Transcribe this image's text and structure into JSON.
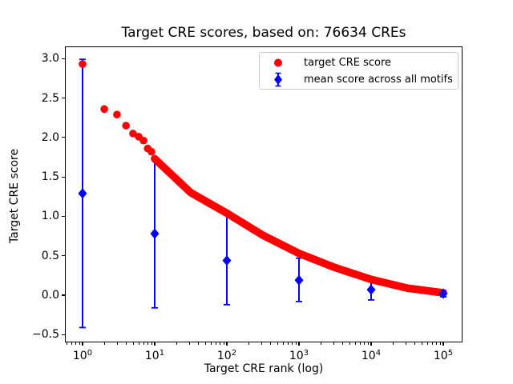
{
  "chart_data": {
    "type": "scatter",
    "title": "Target CRE scores, based on: 76634 CREs",
    "xlabel": "Target CRE rank (log)",
    "ylabel": "Target CRE score",
    "x_scale": "log",
    "xlim_log10": [
      -0.25,
      5.27
    ],
    "ylim": [
      -0.67,
      3.1
    ],
    "grid": false,
    "legend_position": "upper right",
    "colors": {
      "target": "#ff0000",
      "mean": "#0000ff",
      "axis": "#000000",
      "legend_border": "#cccccc"
    },
    "series": [
      {
        "name": "target CRE score",
        "type": "scatter",
        "marker": "circle",
        "color": "#ff0000",
        "points_rank_score": [
          [
            1,
            2.93
          ],
          [
            2,
            2.36
          ],
          [
            3,
            2.29
          ],
          [
            4,
            2.15
          ],
          [
            5,
            2.05
          ],
          [
            6,
            2.01
          ],
          [
            7,
            1.96
          ],
          [
            8,
            1.86
          ],
          [
            9,
            1.82
          ],
          [
            10,
            1.73
          ]
        ],
        "curve_anchors_log10rank_score": [
          [
            1.0,
            1.73
          ],
          [
            1.5,
            1.3
          ],
          [
            2.0,
            1.04
          ],
          [
            2.5,
            0.76
          ],
          [
            3.0,
            0.53
          ],
          [
            3.5,
            0.35
          ],
          [
            4.0,
            0.2
          ],
          [
            4.5,
            0.09
          ],
          [
            5.0,
            0.03
          ]
        ]
      },
      {
        "name": "mean score across all motifs",
        "type": "errorbar",
        "marker": "diamond",
        "color": "#0000ff",
        "ranks": [
          1,
          10,
          100,
          1000,
          10000,
          100000
        ],
        "means": [
          1.29,
          0.78,
          0.44,
          0.19,
          0.07,
          0.02
        ],
        "upper": [
          2.99,
          1.72,
          1.02,
          0.47,
          0.2,
          0.06
        ],
        "lower": [
          -0.41,
          -0.16,
          -0.12,
          -0.08,
          -0.06,
          -0.02
        ]
      }
    ]
  },
  "axes": {
    "x_ticks": [
      {
        "base": "10",
        "exp": "0",
        "value": 1
      },
      {
        "base": "10",
        "exp": "1",
        "value": 10
      },
      {
        "base": "10",
        "exp": "2",
        "value": 100
      },
      {
        "base": "10",
        "exp": "3",
        "value": 1000
      },
      {
        "base": "10",
        "exp": "4",
        "value": 10000
      },
      {
        "base": "10",
        "exp": "5",
        "value": 100000
      }
    ],
    "y_ticks": [
      {
        "label": "3.0",
        "value": 3.0
      },
      {
        "label": "2.5",
        "value": 2.5
      },
      {
        "label": "2.0",
        "value": 2.0
      },
      {
        "label": "1.5",
        "value": 1.5
      },
      {
        "label": "1.0",
        "value": 1.0
      },
      {
        "label": "0.5",
        "value": 0.5
      },
      {
        "label": "0.0",
        "value": 0.0
      },
      {
        "label": "−0.5",
        "value": -0.5
      }
    ]
  }
}
